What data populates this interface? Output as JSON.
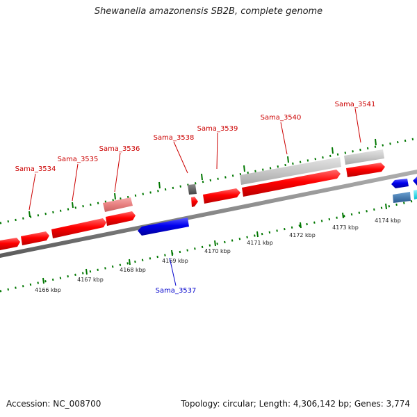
{
  "title": "Shewanella amazonensis SB2B, complete genome",
  "footer": {
    "accession": "Accession: NC_008700",
    "topology": "Topology: circular; Length: 4,306,142 bp; Genes: 3,774"
  },
  "colors": {
    "forward_gene": "#ff0000",
    "forward_gene_light": "#e88080",
    "reverse_gene": "#0000ee",
    "reverse_gene_teal": "#3a78b0",
    "reverse_gene_cyan": "#00e5ee",
    "pseudo_gene": "#c8c8c8",
    "rna_gene": "#555555",
    "backbone": "#888888",
    "ticks": "#007700",
    "label_forward": "#cc0000",
    "label_reverse": "#0000cc"
  },
  "scale": {
    "unit": "kbp",
    "labels": [
      "4166 kbp",
      "4167 kbp",
      "4168 kbp",
      "4169 kbp",
      "4170 kbp",
      "4171 kbp",
      "4172 kbp",
      "4173 kbp",
      "4174 kbp"
    ]
  },
  "gene_labels": {
    "forward": [
      "Sama_3534",
      "Sama_3535",
      "Sama_3536",
      "Sama_3538",
      "Sama_3539",
      "Sama_3540",
      "Sama_3541"
    ],
    "reverse": [
      "Sama_3537"
    ]
  }
}
